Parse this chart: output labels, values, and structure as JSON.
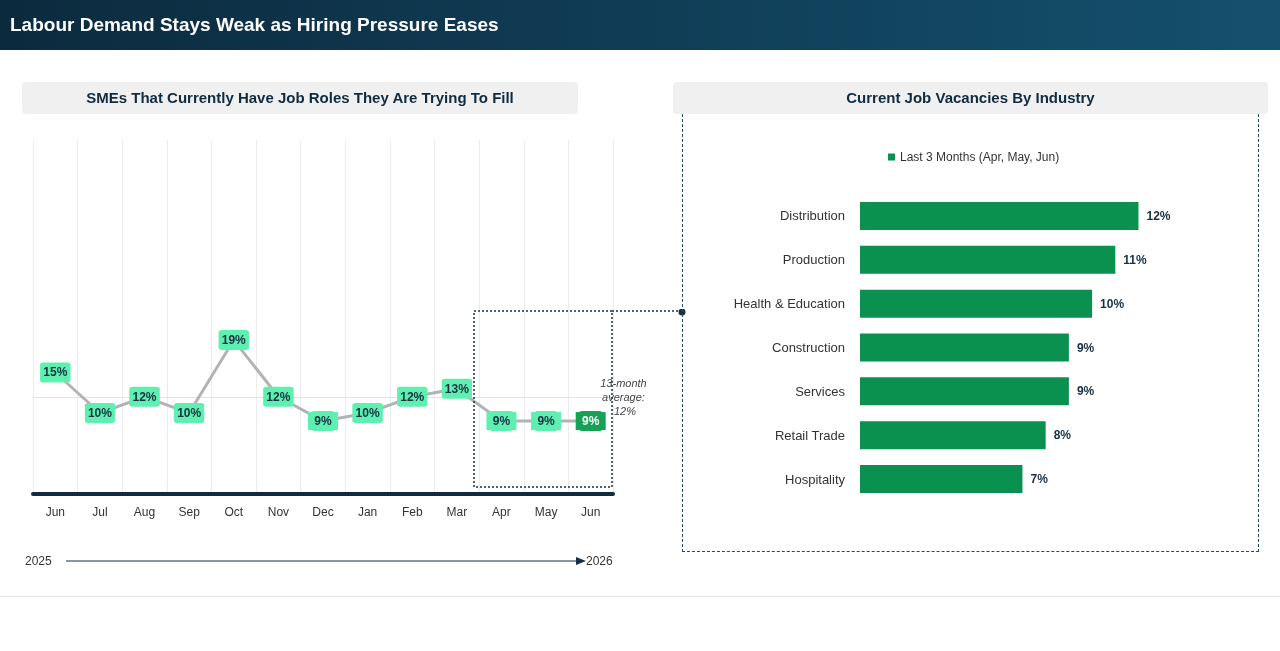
{
  "chart_data": [
    {
      "type": "other",
      "title": "Labour Demand Stays Weak as Hiring Pressure Eases"
    },
    {
      "type": "line",
      "title": "SMEs That Currently Have Job Roles They Are Trying To Fill",
      "categories": [
        "Jun",
        "Jul",
        "Aug",
        "Sep",
        "Oct",
        "Nov",
        "Dec",
        "Jan",
        "Feb",
        "Mar",
        "Apr",
        "May",
        "Jun"
      ],
      "series": [
        {
          "color": "#b3b3b3",
          "values": [
            15,
            10,
            12,
            10,
            19,
            12,
            9,
            10,
            12,
            13,
            9,
            9,
            9
          ],
          "colors": [
            "#5ef0b0",
            "#5ef0b0",
            "#5ef0b0",
            "#5ef0b0",
            "#5ef0b0",
            "#5ef0b0",
            "#5ef0b0",
            "#5ef0b0",
            "#5ef0b0",
            "#5ef0b0",
            "#5ef0b0",
            "#5ef0b0",
            "#14a354"
          ],
          "value_labels": [
            "15%",
            "10%",
            "12%",
            "10%",
            "19%",
            "12%",
            "9%",
            "10%",
            "12%",
            "13%",
            "9%",
            "9%",
            "9%"
          ]
        }
      ],
      "ref_lines": [
        {
          "axis": "y",
          "value": 12,
          "label": "13-month average: 12%",
          "color": "#e3e3e3"
        }
      ],
      "grid": "x",
      "marker": "square",
      "annotations": [
        "2025",
        "2026"
      ]
    },
    {
      "type": "bar",
      "title": "Current Job Vacancies By Industry",
      "orientation": "horizontal",
      "legend": "top",
      "categories": [
        "Distribution",
        "Production",
        "Health & Education",
        "Construction",
        "Services",
        "Retail Trade",
        "Hospitality"
      ],
      "series": [
        {
          "name": "Last 3 Months (Apr, May, Jun)",
          "color": "#0a9150",
          "values": [
            12,
            11,
            10,
            9,
            9,
            8,
            7
          ],
          "value_labels": [
            "12%",
            "11%",
            "10%",
            "9%",
            "9%",
            "8%",
            "7%"
          ]
        }
      ]
    }
  ]
}
